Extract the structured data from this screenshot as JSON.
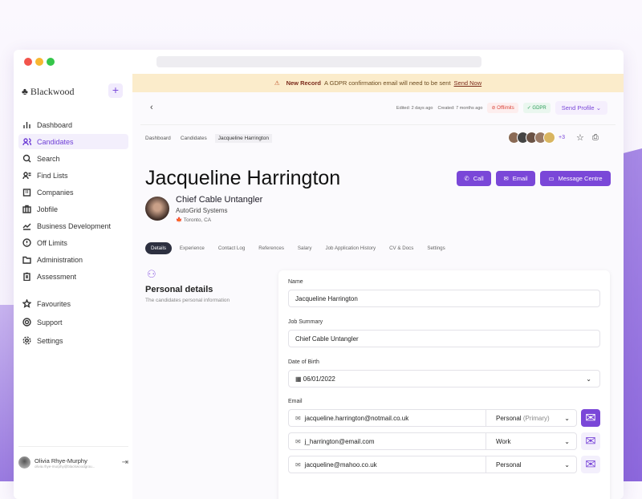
{
  "app": {
    "logo": "♣ Blackwood",
    "add_label": "+"
  },
  "sidebar": {
    "items": [
      {
        "label": "Dashboard",
        "icon": "bar-chart-icon"
      },
      {
        "label": "Candidates",
        "icon": "users-icon",
        "active": true
      },
      {
        "label": "Search",
        "icon": "search-icon"
      },
      {
        "label": "Find Lists",
        "icon": "user-list-icon"
      },
      {
        "label": "Companies",
        "icon": "building-icon"
      },
      {
        "label": "Jobfile",
        "icon": "briefcase-icon"
      },
      {
        "label": "Business Development",
        "icon": "trend-icon"
      },
      {
        "label": "Off Limits",
        "icon": "alert-circle-icon"
      },
      {
        "label": "Administration",
        "icon": "folder-icon"
      },
      {
        "label": "Assessment",
        "icon": "clipboard-icon"
      }
    ],
    "secondary": [
      {
        "label": "Favourites",
        "icon": "star-icon"
      },
      {
        "label": "Support",
        "icon": "lifebuoy-icon"
      },
      {
        "label": "Settings",
        "icon": "gear-icon"
      }
    ],
    "user": {
      "name": "Olivia Rhye-Murphy",
      "email": "olivia.rhye-murphy@blackwoodgrou..."
    }
  },
  "banner": {
    "title": "New Record",
    "message": "A GDPR confirmation email will need to be sent",
    "action": "Send Now"
  },
  "meta": {
    "edited": "Edited: 2 days ago",
    "created": "Created: 7 months ago",
    "offlimits": "Offlimits",
    "gdpr": "GDPR",
    "send_profile": "Send Profile"
  },
  "breadcrumb": [
    "Dashboard",
    "Candidates",
    "Jacqueline Harrington"
  ],
  "watchers_more": "+3",
  "candidate": {
    "name": "Jacqueline Harrington",
    "title": "Chief Cable Untangler",
    "company": "AutoGrid Systems",
    "location": "Toronto, CA"
  },
  "actions": {
    "call": "Call",
    "email": "Email",
    "message": "Message Centre"
  },
  "tabs": [
    "Details",
    "Experience",
    "Contact Log",
    "References",
    "Salary",
    "Job Application History",
    "CV & Docs",
    "Settings"
  ],
  "section": {
    "title": "Personal details",
    "subtitle": "The candidates personal information"
  },
  "form": {
    "name_label": "Name",
    "name_value": "Jacqueline Harrington",
    "summary_label": "Job Summary",
    "summary_value": "Chief Cable Untangler",
    "dob_label": "Date of Birth",
    "dob_value": "06/01/2022",
    "email_label": "Email",
    "emails": [
      {
        "address": "jacqueline.harrington@notmail.co.uk",
        "type": "Personal",
        "type_note": "(Primary)"
      },
      {
        "address": "j_harrington@email.com",
        "type": "Work",
        "type_note": ""
      },
      {
        "address": "jacqueline@mahoo.co.uk",
        "type": "Personal",
        "type_note": ""
      }
    ]
  },
  "colors": {
    "accent": "#7a47d8",
    "banner": "#fbeccb",
    "offlimits": "#d9443a",
    "gdpr": "#2f9e5b"
  }
}
